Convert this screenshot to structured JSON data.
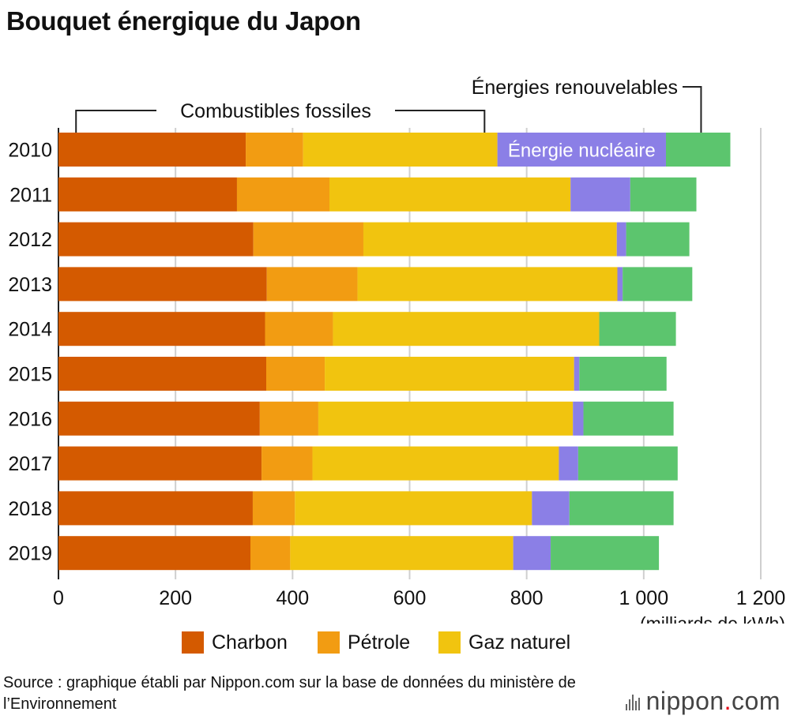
{
  "title": "Bouquet énergique du Japon",
  "chart_data": {
    "type": "bar",
    "orientation": "horizontal",
    "stacked": true,
    "categories": [
      "2010",
      "2011",
      "2012",
      "2013",
      "2014",
      "2015",
      "2016",
      "2017",
      "2018",
      "2019"
    ],
    "series": [
      {
        "name": "Charbon",
        "color": "#d45a00",
        "values": [
          320,
          305,
          333,
          356,
          353,
          355,
          344,
          347,
          332,
          328
        ]
      },
      {
        "name": "Pétrole",
        "color": "#f29c12",
        "values": [
          98,
          158,
          188,
          155,
          116,
          100,
          100,
          87,
          72,
          68
        ]
      },
      {
        "name": "Gaz naturel",
        "color": "#f1c40f",
        "values": [
          332,
          412,
          433,
          444,
          455,
          426,
          435,
          421,
          405,
          381
        ]
      },
      {
        "name": "Énergie nucléaire",
        "color": "#8b7fe6",
        "values": [
          288,
          102,
          16,
          9,
          0,
          9,
          18,
          33,
          64,
          64
        ]
      },
      {
        "name": "Énergies renouvelables",
        "color": "#5cc56e",
        "values": [
          110,
          113,
          108,
          119,
          131,
          149,
          154,
          170,
          178,
          185
        ]
      }
    ],
    "xlim": [
      0,
      1200
    ],
    "xticks": [
      "0",
      "200",
      "400",
      "600",
      "800",
      "1 000",
      "1 200"
    ],
    "xtick_values": [
      0,
      200,
      400,
      600,
      800,
      1000,
      1200
    ],
    "xunit": "(milliards de kWh)",
    "grid": true,
    "annotations": {
      "fossiles": "Combustibles fossiles",
      "renouvelables": "Énergies renouvelables",
      "nucleaire": "Énergie nucléaire"
    },
    "legend": [
      "Charbon",
      "Pétrole",
      "Gaz naturel"
    ],
    "legend_placement": "bottom"
  },
  "source": "Source : graphique établi par Nippon.com sur la base de données du ministère de l’Environnement",
  "logo": {
    "name": "nippon",
    "dot": ".",
    "suffix": "com"
  }
}
